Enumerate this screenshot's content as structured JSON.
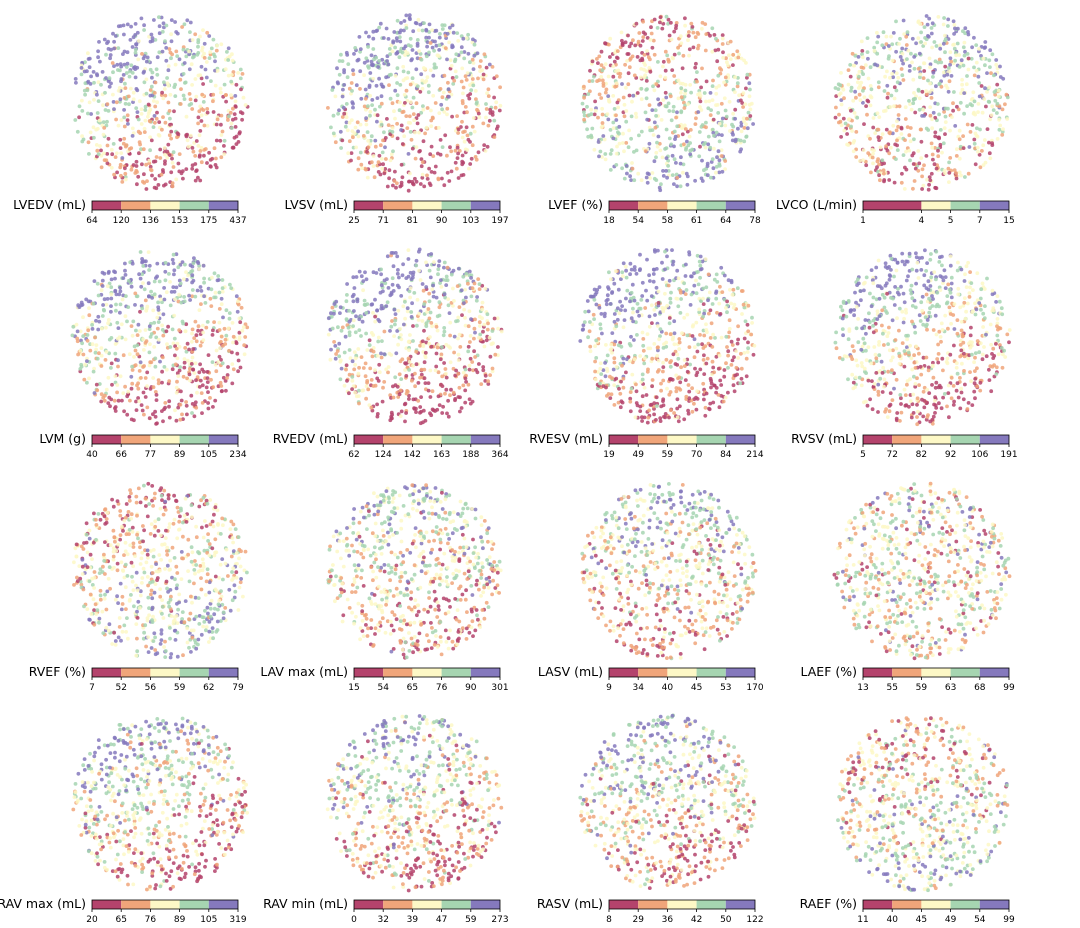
{
  "palette": [
    "#b4436c",
    "#f0a57a",
    "#fdf8c6",
    "#a6d5b1",
    "#8579bd"
  ],
  "chart_data": [
    {
      "type": "scatter",
      "title": "LVEDV (mL)",
      "gradient": [
        -0.4,
        0.85
      ],
      "colorbar_ticks": [
        "64",
        "120",
        "136",
        "153",
        "175",
        "437"
      ]
    },
    {
      "type": "scatter",
      "title": "LVSV (mL)",
      "gradient": [
        -0.4,
        0.85
      ],
      "colorbar_ticks": [
        "25",
        "71",
        "81",
        "90",
        "103",
        "197"
      ]
    },
    {
      "type": "scatter",
      "title": "LVEF (%)",
      "gradient": [
        0.1,
        -0.65
      ],
      "colorbar_ticks": [
        "18",
        "54",
        "58",
        "61",
        "64",
        "78"
      ]
    },
    {
      "type": "scatter",
      "title": "LVCO (L/min)",
      "gradient": [
        0.1,
        0.55
      ],
      "colorbar_ticks": [
        "1",
        "4",
        "5",
        "7",
        "15"
      ],
      "colorbar_stops": [
        0,
        0.4,
        0.6,
        0.8,
        1
      ]
    },
    {
      "type": "scatter",
      "title": "LVM (g)",
      "gradient": [
        -0.4,
        0.9
      ],
      "colorbar_ticks": [
        "40",
        "66",
        "77",
        "89",
        "105",
        "234"
      ]
    },
    {
      "type": "scatter",
      "title": "RVEDV (mL)",
      "gradient": [
        -0.4,
        0.9
      ],
      "colorbar_ticks": [
        "62",
        "124",
        "142",
        "163",
        "188",
        "364"
      ]
    },
    {
      "type": "scatter",
      "title": "RVESV (mL)",
      "gradient": [
        -0.4,
        0.9
      ],
      "colorbar_ticks": [
        "19",
        "49",
        "59",
        "70",
        "84",
        "214"
      ]
    },
    {
      "type": "scatter",
      "title": "RVSV (mL)",
      "gradient": [
        -0.3,
        0.8
      ],
      "colorbar_ticks": [
        "5",
        "72",
        "82",
        "92",
        "106",
        "191"
      ]
    },
    {
      "type": "scatter",
      "title": "RVEF (%)",
      "gradient": [
        0.15,
        -0.5
      ],
      "colorbar_ticks": [
        "7",
        "52",
        "56",
        "59",
        "62",
        "79"
      ]
    },
    {
      "type": "scatter",
      "title": "LAV max (mL)",
      "gradient": [
        0.0,
        0.45
      ],
      "colorbar_ticks": [
        "15",
        "54",
        "65",
        "76",
        "90",
        "301"
      ]
    },
    {
      "type": "scatter",
      "title": "LASV (mL)",
      "gradient": [
        0.0,
        0.45
      ],
      "colorbar_ticks": [
        "9",
        "34",
        "40",
        "45",
        "53",
        "170"
      ]
    },
    {
      "type": "scatter",
      "title": "LAEF (%)",
      "gradient": [
        0.0,
        0.05
      ],
      "colorbar_ticks": [
        "13",
        "55",
        "59",
        "63",
        "68",
        "99"
      ]
    },
    {
      "type": "scatter",
      "title": "RAV max (mL)",
      "gradient": [
        -0.3,
        0.65
      ],
      "colorbar_ticks": [
        "20",
        "65",
        "76",
        "89",
        "105",
        "319"
      ]
    },
    {
      "type": "scatter",
      "title": "RAV min (mL)",
      "gradient": [
        -0.2,
        0.6
      ],
      "colorbar_ticks": [
        "0",
        "32",
        "39",
        "47",
        "59",
        "273"
      ]
    },
    {
      "type": "scatter",
      "title": "RASV (mL)",
      "gradient": [
        -0.2,
        0.55
      ],
      "colorbar_ticks": [
        "8",
        "29",
        "36",
        "42",
        "50",
        "122"
      ]
    },
    {
      "type": "scatter",
      "title": "RAEF (%)",
      "gradient": [
        0.1,
        -0.35
      ],
      "colorbar_ticks": [
        "11",
        "40",
        "45",
        "49",
        "54",
        "99"
      ]
    }
  ]
}
